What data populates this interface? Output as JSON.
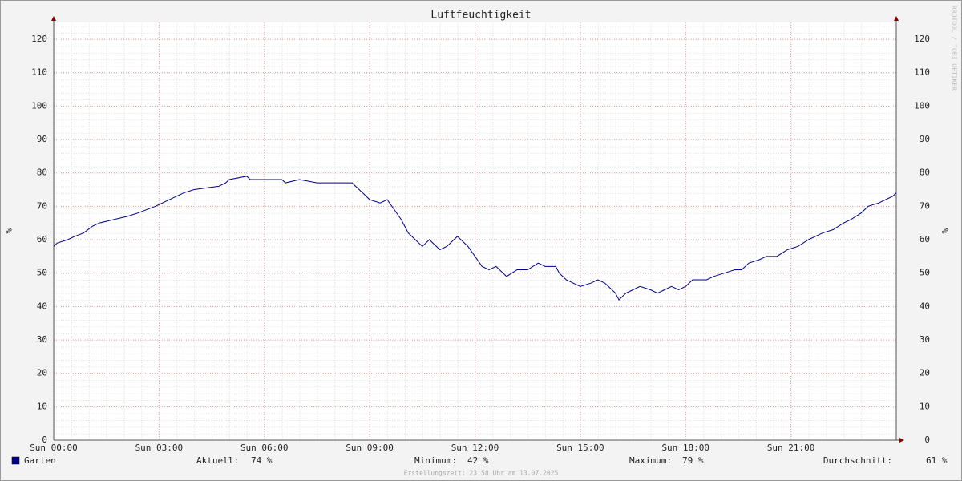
{
  "chart_data": {
    "type": "line",
    "title": "Luftfeuchtigkeit",
    "y_label": "%",
    "x": [
      0,
      0.1,
      0.4,
      0.6,
      0.85,
      1.1,
      1.3,
      1.7,
      2.1,
      2.4,
      2.9,
      3.5,
      3.7,
      4.0,
      4.7,
      4.9,
      5.0,
      5.5,
      5.6,
      6.0,
      6.5,
      6.6,
      7.0,
      7.5,
      8.0,
      8.5,
      8.6,
      8.8,
      9.0,
      9.3,
      9.5,
      9.7,
      9.9,
      10.1,
      10.3,
      10.5,
      10.7,
      10.9,
      11.0,
      11.2,
      11.4,
      11.5,
      11.6,
      11.8,
      12.0,
      12.2,
      12.4,
      12.6,
      12.9,
      13.2,
      13.5,
      13.8,
      14.0,
      14.3,
      14.4,
      14.6,
      14.8,
      15.0,
      15.3,
      15.5,
      15.7,
      15.9,
      16.0,
      16.1,
      16.3,
      16.5,
      16.7,
      17.0,
      17.2,
      17.4,
      17.6,
      17.8,
      18.0,
      18.1,
      18.2,
      18.4,
      18.6,
      18.8,
      19.1,
      19.4,
      19.6,
      19.8,
      20.1,
      20.3,
      20.6,
      20.9,
      21.2,
      21.5,
      21.7,
      21.9,
      22.2,
      22.5,
      22.7,
      23.0,
      23.2,
      23.5,
      23.7,
      23.9,
      24
    ],
    "series": [
      {
        "name": "Garten",
        "color": "#00008b",
        "values": [
          58,
          59,
          60,
          61,
          62,
          64,
          65,
          66,
          67,
          68,
          70,
          73,
          74,
          75,
          76,
          77,
          78,
          79,
          78,
          78,
          78,
          77,
          78,
          77,
          77,
          77,
          76,
          74,
          72,
          71,
          72,
          69,
          66,
          62,
          60,
          58,
          60,
          58,
          57,
          58,
          60,
          61,
          60,
          58,
          55,
          52,
          51,
          52,
          49,
          51,
          51,
          53,
          52,
          52,
          50,
          48,
          47,
          46,
          47,
          48,
          47,
          45,
          44,
          42,
          44,
          45,
          46,
          45,
          44,
          45,
          46,
          45,
          46,
          47,
          48,
          48,
          48,
          49,
          50,
          51,
          51,
          53,
          54,
          55,
          55,
          57,
          58,
          60,
          61,
          62,
          63,
          65,
          66,
          68,
          70,
          71,
          72,
          73,
          74
        ]
      }
    ],
    "xlim": [
      0,
      24
    ],
    "xticks": [
      {
        "value": 0,
        "label": "Sun 00:00"
      },
      {
        "value": 3,
        "label": "Sun 03:00"
      },
      {
        "value": 6,
        "label": "Sun 06:00"
      },
      {
        "value": 9,
        "label": "Sun 09:00"
      },
      {
        "value": 12,
        "label": "Sun 12:00"
      },
      {
        "value": 15,
        "label": "Sun 15:00"
      },
      {
        "value": 18,
        "label": "Sun 18:00"
      },
      {
        "value": 21,
        "label": "Sun 21:00"
      }
    ],
    "ylim": [
      0,
      125
    ],
    "yticks": [
      0,
      10,
      20,
      30,
      40,
      50,
      60,
      70,
      80,
      90,
      100,
      110,
      120
    ],
    "grid": true,
    "stats": [
      {
        "label": "Aktuell:",
        "value": "74 %"
      },
      {
        "label": "Minimum:",
        "value": "42 %"
      },
      {
        "label": "Maximum:",
        "value": "79 %"
      },
      {
        "label": "Durchschnitt:",
        "value": "61 %"
      }
    ],
    "footer": "Erstellungszeit: 23:58 Uhr am 13.07.2025",
    "watermark": "RRDTOOL / TOBI OETIKER"
  }
}
